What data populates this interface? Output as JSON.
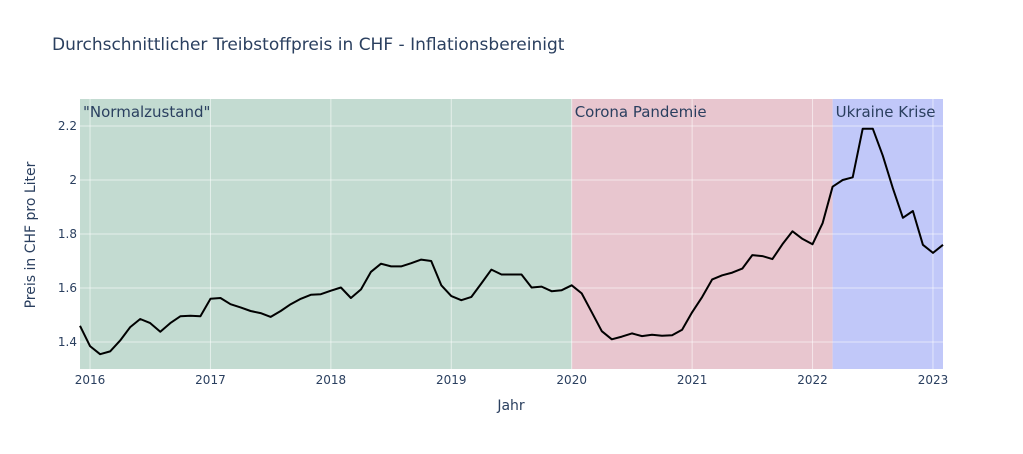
{
  "chart_data": {
    "type": "line",
    "title": "Durchschnittlicher Treibstoffpreis in CHF - Inflationsbereinigt",
    "xlabel": "Jahr",
    "ylabel": "Preis in CHF pro Liter",
    "xlim": [
      "2015-12-01",
      "2023-02-01"
    ],
    "ylim": [
      1.3,
      2.3
    ],
    "x_ticks": [
      "2016",
      "2017",
      "2018",
      "2019",
      "2020",
      "2021",
      "2022",
      "2023"
    ],
    "y_ticks": [
      "1.4",
      "1.6",
      "1.8",
      "2",
      "2.2"
    ],
    "grid": true,
    "line_color": "#000000",
    "regions": [
      {
        "label": "\"Normalzustand\"",
        "start": "2015-12-01",
        "end": "2020-01-01",
        "color": "#c3dbd1"
      },
      {
        "label": "Corona Pandemie",
        "start": "2020-01-01",
        "end": "2022-03-01",
        "color": "#e8c6cf"
      },
      {
        "label": "Ukraine Krise",
        "start": "2022-03-01",
        "end": "2023-02-01",
        "color": "#c1c8f9"
      }
    ],
    "series": [
      {
        "x": [
          "2015-12",
          "2016-01",
          "2016-02",
          "2016-03",
          "2016-04",
          "2016-05",
          "2016-06",
          "2016-07",
          "2016-08",
          "2016-09",
          "2016-10",
          "2016-11",
          "2016-12",
          "2017-01",
          "2017-02",
          "2017-03",
          "2017-04",
          "2017-05",
          "2017-06",
          "2017-07",
          "2017-08",
          "2017-09",
          "2017-10",
          "2017-11",
          "2017-12",
          "2018-01",
          "2018-02",
          "2018-03",
          "2018-04",
          "2018-05",
          "2018-06",
          "2018-07",
          "2018-08",
          "2018-09",
          "2018-10",
          "2018-11",
          "2018-12",
          "2019-01",
          "2019-02",
          "2019-03",
          "2019-04",
          "2019-05",
          "2019-06",
          "2019-07",
          "2019-08",
          "2019-09",
          "2019-10",
          "2019-11",
          "2019-12",
          "2020-01",
          "2020-02",
          "2020-03",
          "2020-04",
          "2020-05",
          "2020-06",
          "2020-07",
          "2020-08",
          "2020-09",
          "2020-10",
          "2020-11",
          "2020-12",
          "2021-01",
          "2021-02",
          "2021-03",
          "2021-04",
          "2021-05",
          "2021-06",
          "2021-07",
          "2021-08",
          "2021-09",
          "2021-10",
          "2021-11",
          "2021-12",
          "2022-01",
          "2022-02",
          "2022-03",
          "2022-04",
          "2022-05",
          "2022-06",
          "2022-07",
          "2022-08",
          "2022-09",
          "2022-10",
          "2022-11",
          "2022-12",
          "2023-01",
          "2023-02"
        ],
        "y": [
          1.46,
          1.385,
          1.355,
          1.365,
          1.405,
          1.455,
          1.485,
          1.47,
          1.438,
          1.47,
          1.495,
          1.497,
          1.495,
          1.56,
          1.563,
          1.54,
          1.528,
          1.515,
          1.507,
          1.493,
          1.515,
          1.54,
          1.56,
          1.575,
          1.577,
          1.59,
          1.602,
          1.563,
          1.595,
          1.66,
          1.69,
          1.68,
          1.68,
          1.692,
          1.705,
          1.7,
          1.61,
          1.57,
          1.555,
          1.567,
          1.617,
          1.668,
          1.65,
          1.65,
          1.65,
          1.602,
          1.605,
          1.588,
          1.592,
          1.61,
          1.58,
          1.51,
          1.44,
          1.41,
          1.42,
          1.432,
          1.422,
          1.427,
          1.423,
          1.425,
          1.445,
          1.51,
          1.567,
          1.632,
          1.647,
          1.657,
          1.672,
          1.722,
          1.718,
          1.707,
          1.762,
          1.81,
          1.782,
          1.762,
          1.84,
          1.975,
          2.0,
          2.01,
          2.19,
          2.19,
          2.09,
          1.97,
          1.86,
          1.885,
          1.76,
          1.73,
          1.76
        ]
      }
    ]
  }
}
